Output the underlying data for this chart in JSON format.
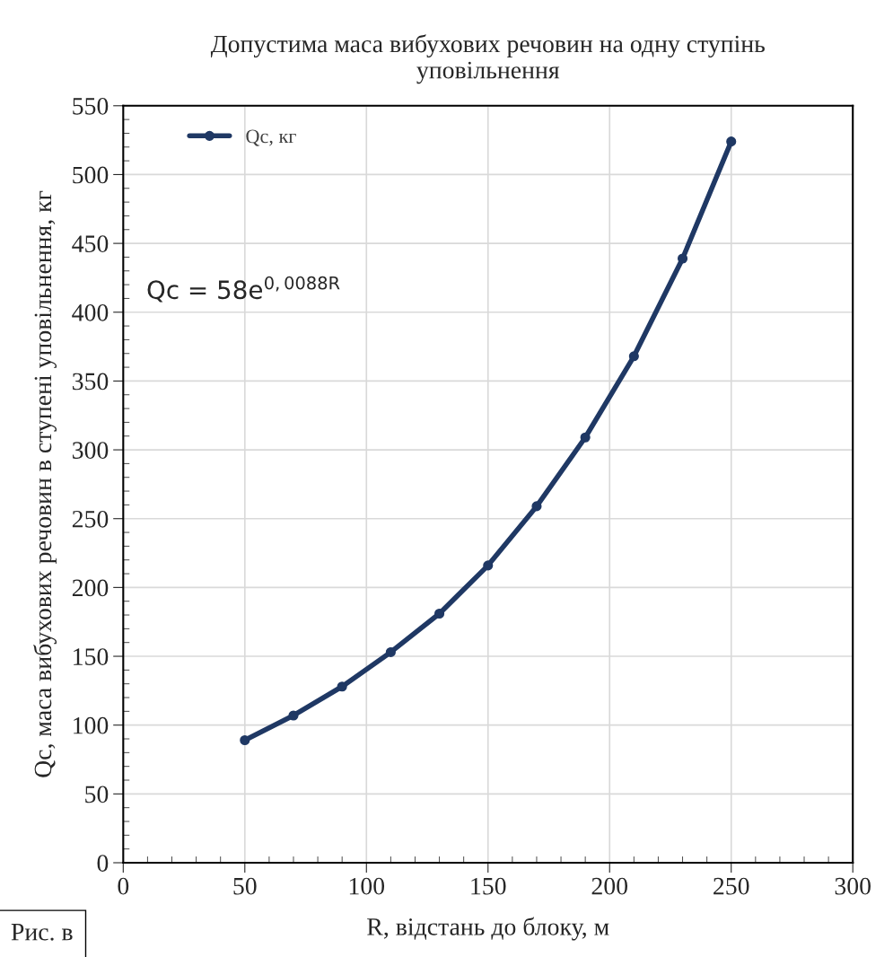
{
  "chart_data": {
    "type": "line",
    "title": "Допустима маса вибухових речовин на одну ступінь\nуповільнення",
    "xlabel": "R, відстань до блоку, м",
    "ylabel": "Qc, маса вибухових речовин в ступені уповільнення, кг",
    "x": [
      50,
      70,
      90,
      110,
      130,
      150,
      170,
      190,
      210,
      230,
      250
    ],
    "series": [
      {
        "name": "Qc, кг",
        "color": "#1f3864",
        "values": [
          89,
          107,
          128,
          153,
          181,
          216,
          259,
          309,
          368,
          439,
          524
        ]
      }
    ],
    "xlim": [
      0,
      300
    ],
    "xticks": [
      0,
      50,
      100,
      150,
      200,
      250,
      300
    ],
    "ylim": [
      0,
      550
    ],
    "yticks": [
      0,
      50,
      100,
      150,
      200,
      250,
      300,
      350,
      400,
      450,
      500,
      550
    ],
    "grid": true,
    "legend": "top left",
    "marker": "circle",
    "line_style": "solid",
    "annotations": [
      "Qc = 58e$^{0,0088R}$",
      "Рис. в"
    ]
  }
}
